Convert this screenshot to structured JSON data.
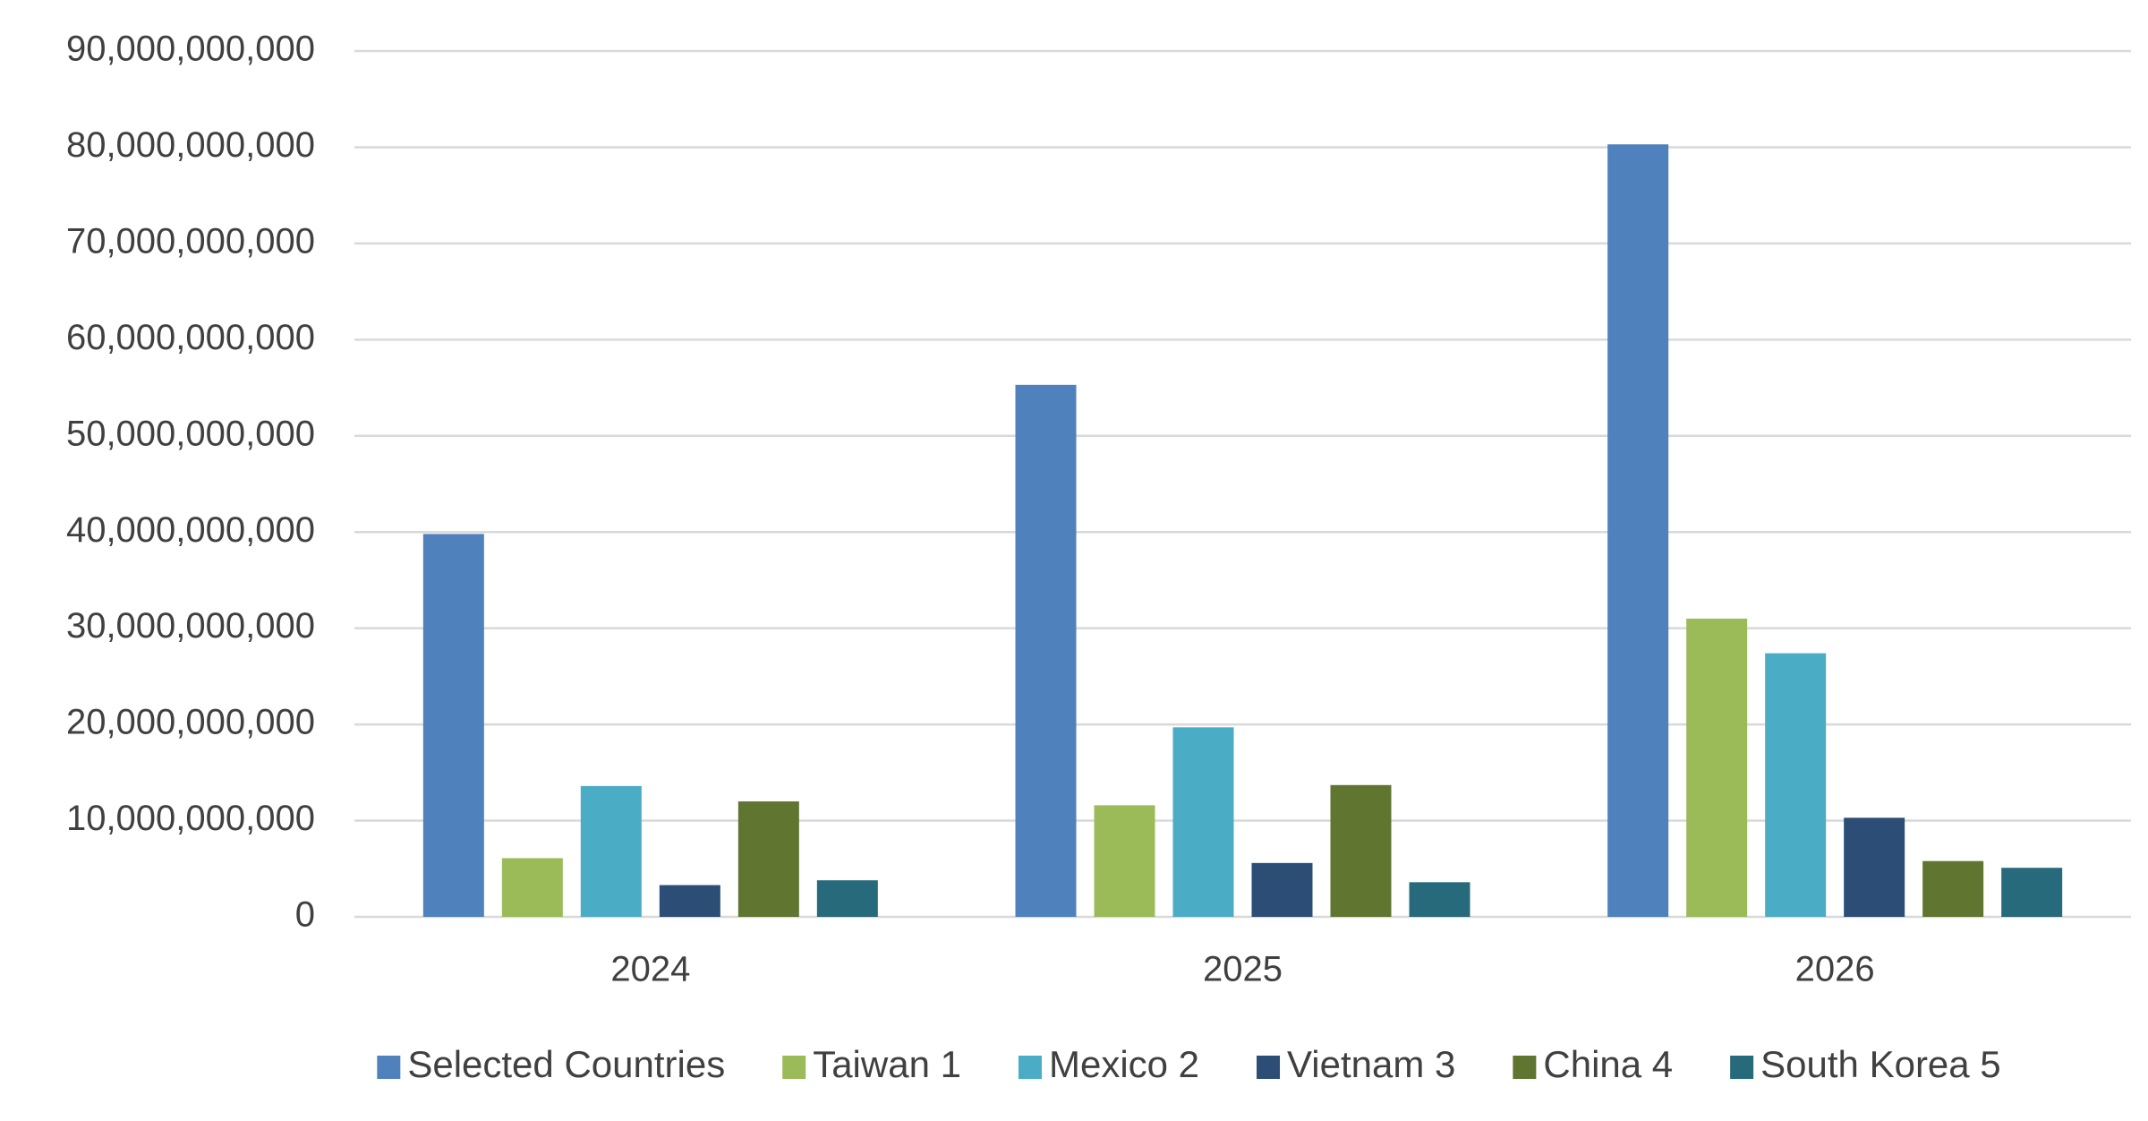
{
  "chart_data": {
    "type": "bar",
    "categories": [
      "2024",
      "2025",
      "2026"
    ],
    "series": [
      {
        "name": "Selected Countries",
        "color": "#4f81bd",
        "values": [
          39800000000,
          55300000000,
          80300000000
        ]
      },
      {
        "name": "Taiwan 1",
        "color": "#9bbb59",
        "values": [
          6100000000,
          11600000000,
          31000000000
        ]
      },
      {
        "name": "Mexico 2",
        "color": "#4bacc6",
        "values": [
          13600000000,
          19700000000,
          27400000000
        ]
      },
      {
        "name": "Vietnam 3",
        "color": "#2c4d75",
        "values": [
          3300000000,
          5600000000,
          10300000000
        ]
      },
      {
        "name": "China 4",
        "color": "#5f7530",
        "values": [
          12000000000,
          13700000000,
          5800000000
        ]
      },
      {
        "name": "South Korea 5",
        "color": "#276a7c",
        "values": [
          3800000000,
          3600000000,
          5100000000
        ]
      }
    ],
    "ylim": [
      0,
      90000000000
    ],
    "yticks": [
      0,
      {
        "value": 10000000000,
        "label": "10,000,000,000"
      },
      {
        "value": 20000000000,
        "label": "20,000,000,000"
      },
      {
        "value": 30000000000,
        "label": "30,000,000,000"
      },
      {
        "value": 40000000000,
        "label": "40,000,000,000"
      },
      {
        "value": 50000000000,
        "label": "50,000,000,000"
      },
      {
        "value": 60000000000,
        "label": "60,000,000,000"
      },
      {
        "value": 70000000000,
        "label": "70,000,000,000"
      },
      {
        "value": 80000000000,
        "label": "80,000,000,000"
      },
      {
        "value": 90000000000,
        "label": "90,000,000,000"
      }
    ],
    "grid": true,
    "legend": "bottom"
  }
}
